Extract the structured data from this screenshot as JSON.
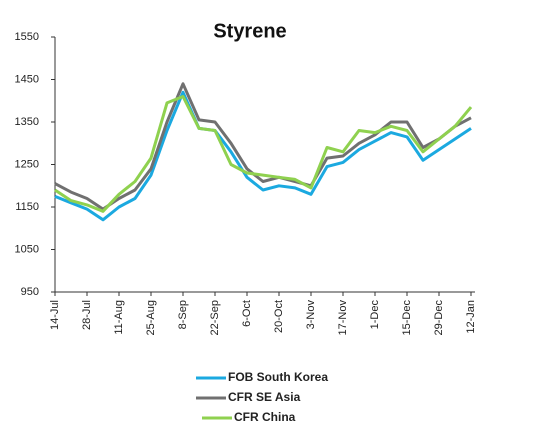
{
  "chart_data": {
    "type": "line",
    "title": "Styrene",
    "categories": [
      "14-Jul",
      null,
      "28-Jul",
      null,
      "11-Aug",
      null,
      "25-Aug",
      null,
      "8-Sep",
      null,
      "22-Sep",
      null,
      "6-Oct",
      null,
      "20-Oct",
      null,
      "3-Nov",
      null,
      "17-Nov",
      null,
      "1-Dec",
      null,
      "15-Dec",
      null,
      "29-Dec",
      null,
      "12-Jan"
    ],
    "series": [
      {
        "name": "FOB South Korea",
        "color": "#1ba9e0",
        "values": [
          1175,
          1160,
          1145,
          1120,
          1150,
          1170,
          1225,
          1330,
          1420,
          1335,
          1330,
          1280,
          1220,
          1190,
          1200,
          1195,
          1180,
          1245,
          1255,
          1285,
          1305,
          1325,
          1315,
          1260,
          1285,
          1310,
          1335
        ]
      },
      {
        "name": "CFR SE Asia",
        "color": "#707070",
        "values": [
          1205,
          1185,
          1170,
          1145,
          1170,
          1190,
          1240,
          1350,
          1440,
          1355,
          1350,
          1300,
          1240,
          1210,
          1220,
          1210,
          1200,
          1265,
          1270,
          1300,
          1320,
          1350,
          1350,
          1290,
          1310,
          1340,
          1360
        ]
      },
      {
        "name": "CFR China",
        "color": "#8fd14f",
        "values": [
          1190,
          1165,
          1155,
          1140,
          1180,
          1210,
          1265,
          1395,
          1410,
          1335,
          1330,
          1250,
          1230,
          1225,
          1220,
          1215,
          1195,
          1290,
          1280,
          1330,
          1325,
          1340,
          1330,
          1280,
          1310,
          1340,
          1385
        ]
      }
    ],
    "ylim": [
      950,
      1550
    ],
    "yticks": [
      950,
      1050,
      1150,
      1250,
      1350,
      1450,
      1550
    ],
    "grid": false
  }
}
